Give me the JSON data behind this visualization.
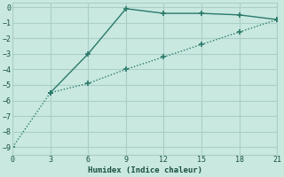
{
  "line1_x": [
    3,
    6,
    9,
    12,
    15,
    18,
    21
  ],
  "line1_y": [
    -5.5,
    -3.0,
    -0.1,
    -0.4,
    -0.4,
    -0.5,
    -0.8
  ],
  "line2_x": [
    0,
    3,
    6,
    9,
    12,
    15,
    18,
    21
  ],
  "line2_y": [
    -9.0,
    -5.5,
    -4.9,
    -4.0,
    -3.2,
    -2.4,
    -1.6,
    -0.8
  ],
  "line_color": "#2a7a6a",
  "bg_color": "#c8e8e0",
  "grid_color": "#aacfc8",
  "xlabel": "Humidex (Indice chaleur)",
  "xlim": [
    0,
    21
  ],
  "ylim": [
    -9.5,
    0.3
  ],
  "xticks": [
    0,
    3,
    6,
    9,
    12,
    15,
    18,
    21
  ],
  "yticks": [
    0,
    -1,
    -2,
    -3,
    -4,
    -5,
    -6,
    -7,
    -8,
    -9
  ]
}
